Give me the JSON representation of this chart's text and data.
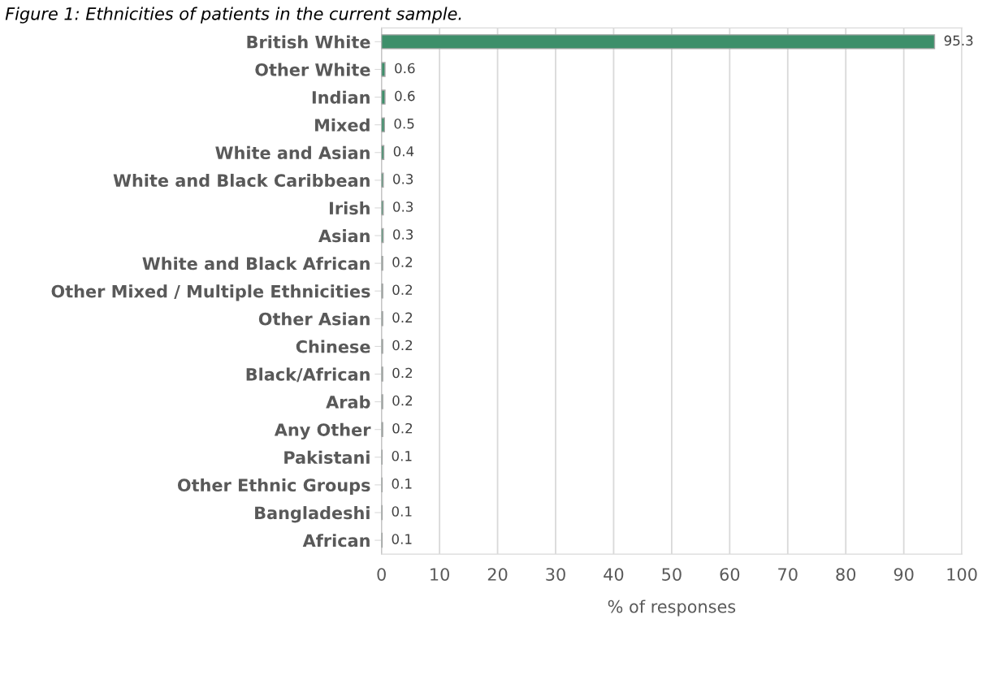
{
  "chart_data": {
    "type": "bar",
    "orientation": "horizontal",
    "title": "Figure 1: Ethnicities of patients in the current sample.",
    "categories": [
      "British White",
      "Other White",
      "Indian",
      "Mixed",
      "White and Asian",
      "White and Black Caribbean",
      "Irish",
      "Asian",
      "White and Black African",
      "Other Mixed / Multiple Ethnicities",
      "Other Asian",
      "Chinese",
      "Black/African",
      "Arab",
      "Any Other",
      "Pakistani",
      "Other Ethnic Groups",
      "Bangladeshi",
      "African"
    ],
    "values": [
      95.3,
      0.6,
      0.6,
      0.5,
      0.4,
      0.3,
      0.3,
      0.3,
      0.2,
      0.2,
      0.2,
      0.2,
      0.2,
      0.2,
      0.2,
      0.1,
      0.1,
      0.1,
      0.1
    ],
    "color": "#3d8f6a",
    "xlabel": "% of responses",
    "xlim": [
      0,
      100
    ],
    "xticks": [
      0,
      10,
      20,
      30,
      40,
      50,
      60,
      70,
      80,
      90,
      100
    ],
    "grid": "x",
    "data_labels": true
  }
}
